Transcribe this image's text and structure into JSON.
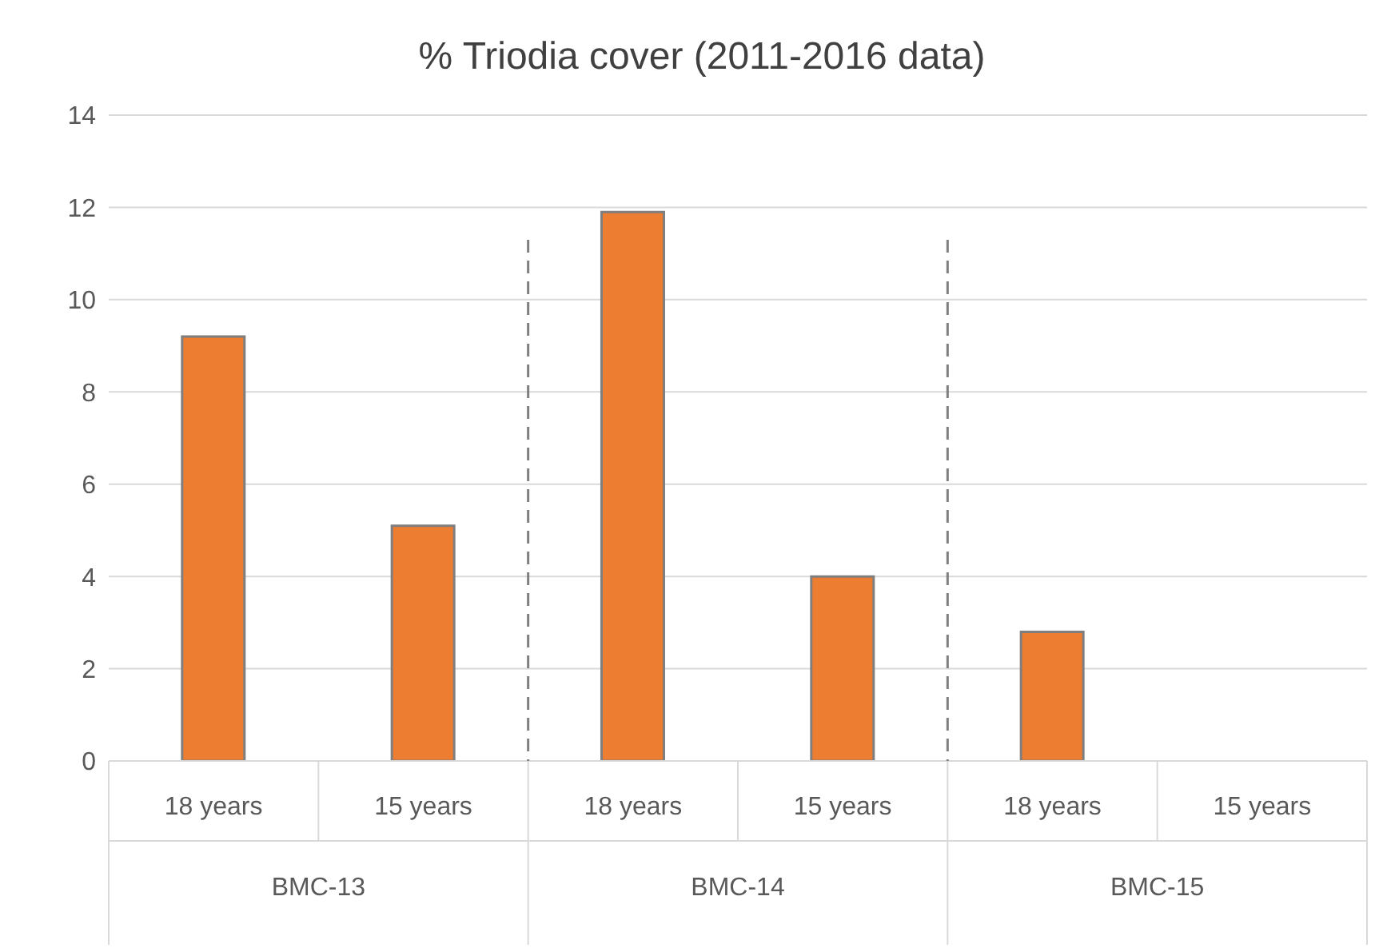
{
  "chart_data": {
    "type": "bar",
    "title": "% Triodia cover (2011-2016 data)",
    "categories": [
      "18 years",
      "15 years",
      "18 years",
      "15 years",
      "18 years",
      "15 years"
    ],
    "values": [
      9.2,
      5.1,
      11.9,
      4.0,
      2.8,
      null
    ],
    "color": "#ed7d31",
    "ylim": [
      0,
      14
    ],
    "yticks": [
      0,
      2,
      4,
      6,
      8,
      10,
      12,
      14
    ],
    "grid": "y",
    "annotations": [
      "BMC-13",
      "BMC-14",
      "BMC-15"
    ]
  }
}
